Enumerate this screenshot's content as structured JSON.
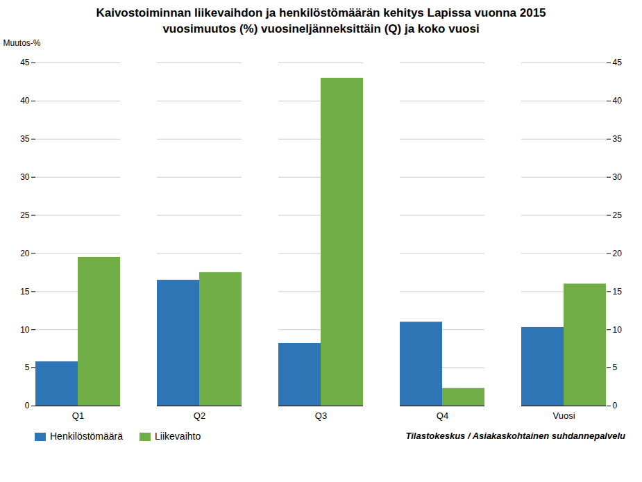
{
  "chart_data": {
    "type": "bar",
    "title": "Kaivostoiminnan liikevaihdon ja henkilöstömäärän kehitys Lapissa vuonna 2015",
    "subtitle": "vuosimuutos (%) vuosineljänneksittäin (Q) ja koko vuosi",
    "ylabel": "Muutos-%",
    "source": "Tilastokeskus / Asiakaskohtainen suhdannepalvelu",
    "categories": [
      "Q1",
      "Q2",
      "Q3",
      "Q4",
      "Vuosi"
    ],
    "series": [
      {
        "name": "Henkilöstömäärä",
        "color": "#2E75B6",
        "values": [
          5.8,
          16.5,
          8.2,
          11.0,
          10.3
        ]
      },
      {
        "name": "Liikevaihto",
        "color": "#70AD47",
        "values": [
          19.5,
          17.5,
          43.0,
          2.3,
          16.0
        ]
      }
    ],
    "ylim": [
      0,
      45
    ],
    "yticks": [
      0,
      5,
      10,
      15,
      20,
      25,
      30,
      35,
      40,
      45
    ],
    "grid": true,
    "legend": "lower left"
  }
}
